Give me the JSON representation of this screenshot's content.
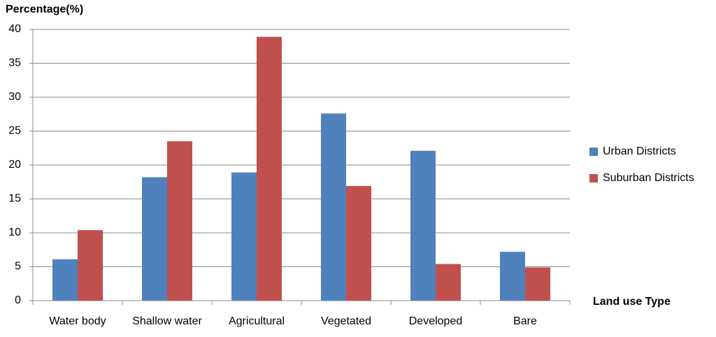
{
  "chart_data": {
    "type": "bar",
    "title": "Percentage(%)",
    "x_label": "Land use Type",
    "categories": [
      "Water body",
      "Shallow water",
      "Agricultural",
      "Vegetated",
      "Developed",
      "Bare"
    ],
    "series": [
      {
        "name": "Urban Districts",
        "color": "#4f81bd",
        "values": [
          6.1,
          18.2,
          18.9,
          27.6,
          22.1,
          7.2
        ]
      },
      {
        "name": "Suburban Districts",
        "color": "#c0504d",
        "values": [
          10.4,
          23.5,
          38.9,
          16.9,
          5.4,
          4.9
        ]
      }
    ],
    "ylim": [
      0,
      40
    ],
    "yticks": [
      0,
      5,
      10,
      15,
      20,
      25,
      30,
      35,
      40
    ],
    "grid": true,
    "legend": "right"
  }
}
